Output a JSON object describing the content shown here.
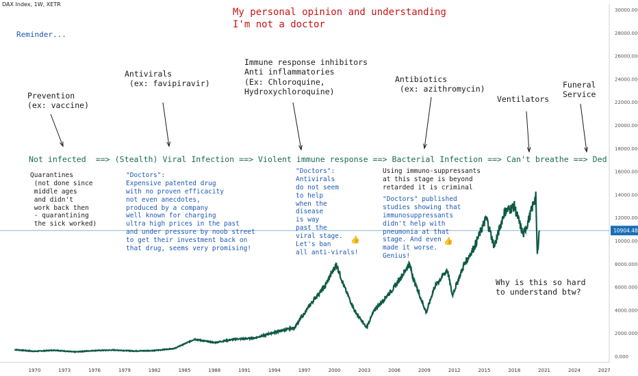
{
  "symbol_label": "DAX Index, 1W, XETR",
  "chart_data": {
    "type": "line",
    "title": "DAX Index, 1W, XETR",
    "xlabel": "",
    "ylabel": "",
    "x_ticks": [
      "1970",
      "1973",
      "1976",
      "1979",
      "1982",
      "1985",
      "1988",
      "1991",
      "1994",
      "1997",
      "2000",
      "2003",
      "2006",
      "2009",
      "2012",
      "2015",
      "2018",
      "2021",
      "2024",
      "2027"
    ],
    "y_ticks": [
      "30000.000",
      "28000.000",
      "26000.000",
      "24000.000",
      "22000.000",
      "20000.000",
      "18000.000",
      "16000.000",
      "14000.000",
      "12000.000",
      "10000.000",
      "8000.000",
      "6000.000",
      "4000.000",
      "2000.000",
      "0.000"
    ],
    "ylim": [
      -500,
      30500
    ],
    "xlim": [
      1967.5,
      2027.5
    ],
    "last_value_label": "10904.480",
    "last_value": 10904.48,
    "line_color": "#0f5a45",
    "price_line_color": "#8fb4d6",
    "x": [
      1968,
      1970,
      1972,
      1974,
      1976,
      1978,
      1980,
      1982,
      1984,
      1986,
      1988,
      1990,
      1992,
      1994,
      1996,
      1998,
      1999,
      2000.2,
      2001,
      2002,
      2003.2,
      2004,
      2005,
      2006,
      2007.5,
      2008,
      2009.2,
      2010,
      2011.3,
      2011.8,
      2013,
      2014,
      2015.2,
      2016,
      2017,
      2018,
      2018.9,
      2019.5,
      2020.0,
      2020.15,
      2020.3,
      2020.5
    ],
    "y": [
      600,
      450,
      550,
      400,
      520,
      560,
      480,
      520,
      700,
      1500,
      1200,
      1500,
      1600,
      2100,
      2500,
      5000,
      6000,
      8000,
      6000,
      4000,
      2500,
      4000,
      5000,
      6000,
      8000,
      6500,
      3800,
      6000,
      7500,
      5300,
      8000,
      9500,
      12000,
      9500,
      12500,
      13000,
      10500,
      12000,
      13500,
      13800,
      8800,
      10904
    ]
  },
  "annotations": {
    "header": [
      "My personal opinion and understanding",
      "I'm not a doctor"
    ],
    "reminder": "Reminder...",
    "prevention": [
      "Prevention",
      "(ex: vaccine)"
    ],
    "antivirals": [
      "Antivirals",
      " (ex: favipiravir)"
    ],
    "inhibitors": [
      "Immune response inhibitors",
      "Anti inflammatories",
      "(Ex: Chloroquine,",
      "Hydroxychloroquine)"
    ],
    "antibiotics": [
      "Antibiotics",
      " (ex: azithromycin)"
    ],
    "ventilators": "Ventilators",
    "funeral": [
      "Funeral",
      "Service"
    ],
    "stages": "Not infected  ==> (Stealth) Viral Infection ==> Violent immune response ==> Bacterial Infection ==> Can't breathe ==> Ded",
    "quarantines": [
      "Quarantines",
      " (not done since",
      " middle ages",
      " and didn't",
      " work back then",
      " - quarantining",
      " the sick worked)"
    ],
    "doctors_antiviral_drug": [
      "\"Doctors\":",
      "Expensive patented drug",
      "with no proven efficacity",
      "not even anecdotes,",
      "produced by a company",
      "well known for charging",
      "ultra high prices in the past",
      "and under pressure by noob street",
      "to get their investment back on",
      "that drug, seems very promising!"
    ],
    "doctors_ban_antivirals": [
      "\"Doctors\":",
      "Antivirals",
      "do not seem",
      "to help",
      "when the",
      "disease",
      "is way",
      "past the",
      "viral stage.",
      "Let's ban",
      "all anti-virals!"
    ],
    "immunosuppressants": [
      "Using immuno-suppressants",
      "at this stage is beyond",
      "retarded it is criminal"
    ],
    "doctors_studies": [
      "\"Doctors\" published",
      "studies showing that",
      "immunosuppressants",
      "didn't help with",
      "pneumonia at that",
      "stage. And even",
      "made it worse.",
      "Genius!"
    ],
    "question": [
      "Why is this so hard",
      "to understand btw?"
    ]
  }
}
